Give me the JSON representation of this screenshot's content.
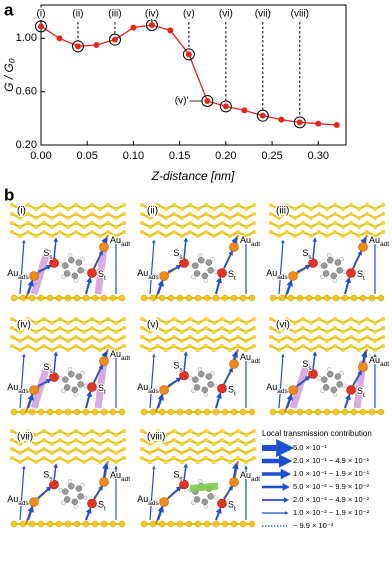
{
  "panel_labels": [
    "a",
    "b"
  ],
  "chart_data": {
    "type": "line",
    "xlabel": "Z-distance [nm]",
    "ylabel": "G / G₀",
    "x": [
      0.0,
      0.02,
      0.04,
      0.06,
      0.08,
      0.1,
      0.12,
      0.14,
      0.16,
      0.18,
      0.2,
      0.22,
      0.24,
      0.26,
      0.28,
      0.3,
      0.32
    ],
    "series": [
      {
        "color": "#e3261d",
        "values": [
          1.09,
          1.0,
          0.94,
          0.95,
          0.99,
          1.08,
          1.1,
          1.06,
          0.88,
          0.53,
          0.49,
          0.46,
          0.42,
          0.39,
          0.37,
          0.36,
          0.35
        ]
      }
    ],
    "xlim": [
      0,
      0.33
    ],
    "ylim": [
      0.2,
      1.25
    ],
    "xticks": [
      {
        "value": 0,
        "label": "0.00"
      },
      {
        "value": 0.05,
        "label": "0.05"
      },
      {
        "value": 0.1,
        "label": "0.10"
      },
      {
        "value": 0.15,
        "label": "0.15"
      },
      {
        "value": 0.2,
        "label": "0.20"
      },
      {
        "value": 0.25,
        "label": "0.25"
      },
      {
        "value": 0.3,
        "label": "0.30"
      }
    ],
    "yticks": [
      {
        "value": 0.2,
        "label": "0.20"
      },
      {
        "value": 0.6,
        "label": "0.60"
      },
      {
        "value": 1.0,
        "label": "1.00"
      }
    ],
    "grid": false,
    "annotations": [
      {
        "text": "(i)",
        "x": 0.0
      },
      {
        "text": "(ii)",
        "x": 0.04
      },
      {
        "text": "(iii)",
        "x": 0.08
      },
      {
        "text": "(iv)",
        "x": 0.12
      },
      {
        "text": "(v)",
        "x": 0.16
      },
      {
        "text": "(v)'",
        "x": 0.18,
        "placement": "left"
      },
      {
        "text": "(vi)",
        "x": 0.2
      },
      {
        "text": "(vii)",
        "x": 0.24
      },
      {
        "text": "(viii)",
        "x": 0.28
      }
    ]
  },
  "structures": {
    "cells": [
      "(i)",
      "(ii)",
      "(iii)",
      "(iv)",
      "(v)",
      "(vi)",
      "(vii)",
      "(viii)"
    ],
    "atoms": {
      "s_s": {
        "main": "S",
        "sub": "s"
      },
      "s_t": {
        "main": "S",
        "sub": "t"
      },
      "au_ads": {
        "main": "Au",
        "sub": "ads"
      },
      "au_adt": {
        "main": "Au",
        "sub": "adt"
      }
    },
    "legend": {
      "title": "Local transmission contribution",
      "entries": [
        "5.0 × 10⁻¹",
        "2.0 × 10⁻¹ ~ 4.9 × 10⁻¹",
        "1.0 × 10⁻¹ ~ 1.9 × 10⁻¹",
        "5.0 × 10⁻² ~ 9.9 × 10⁻²",
        "2.0 × 10⁻² ~ 4.9 × 10⁻²",
        "1.0 × 10⁻² ~ 1.9 × 10⁻²",
        "~ 9.9 × 10⁻³"
      ]
    }
  }
}
